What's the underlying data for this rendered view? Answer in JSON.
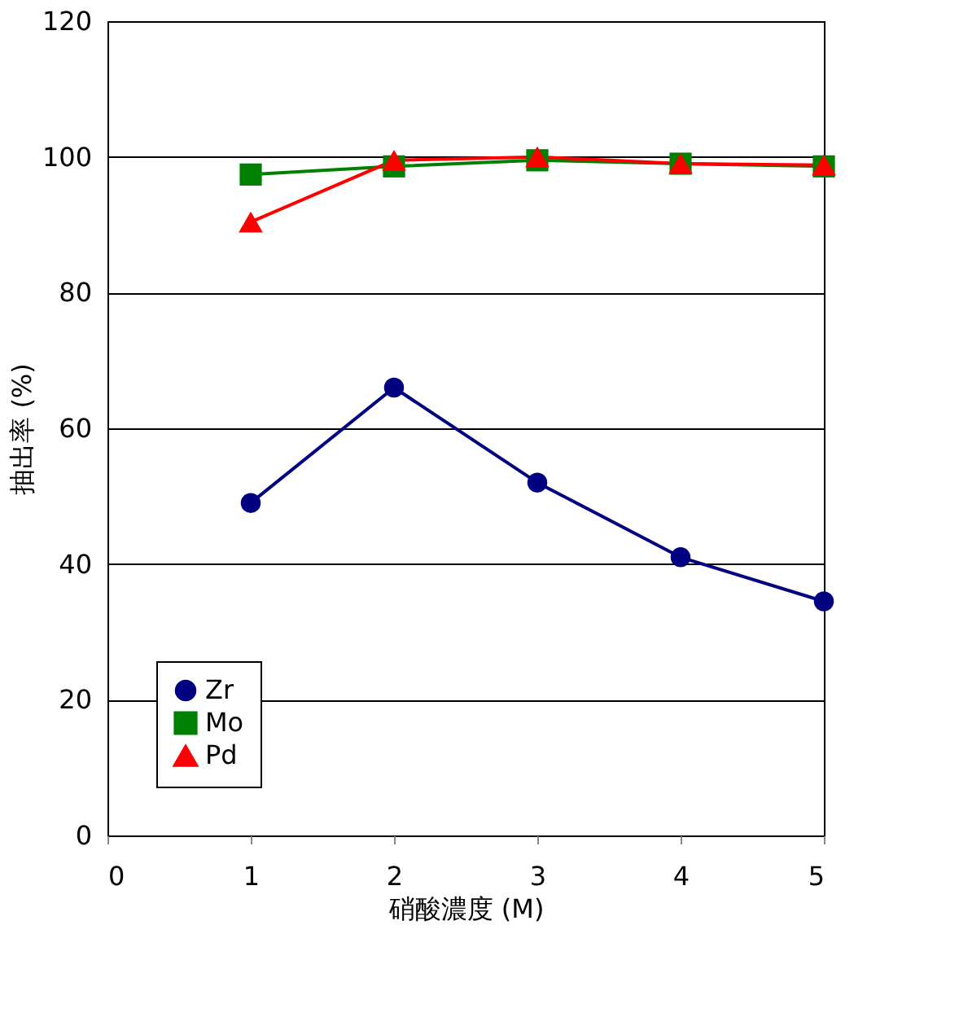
{
  "chart_data": {
    "type": "line",
    "xlabel": "硝酸濃度 (M)",
    "ylabel": "抽出率 (%)",
    "x": [
      1,
      2,
      3,
      4,
      5
    ],
    "series": [
      {
        "name": "Zr",
        "color": "#000080",
        "marker": "circle",
        "values": [
          49,
          66,
          52,
          41,
          34.5
        ]
      },
      {
        "name": "Mo",
        "color": "#008000",
        "marker": "square",
        "values": [
          97.4,
          98.6,
          99.5,
          99,
          98.6
        ]
      },
      {
        "name": "Pd",
        "color": "#ff0000",
        "marker": "triangle",
        "values": [
          90.4,
          99.5,
          100,
          99,
          98.8
        ]
      }
    ],
    "xlim": [
      0,
      5
    ],
    "xticks": [
      0,
      1,
      2,
      3,
      4,
      5
    ],
    "ylim": [
      0,
      120
    ],
    "yticks": [
      0,
      20,
      40,
      60,
      80,
      100,
      120
    ],
    "grid": "y",
    "legend": "bottom left",
    "line_style": "solid"
  }
}
